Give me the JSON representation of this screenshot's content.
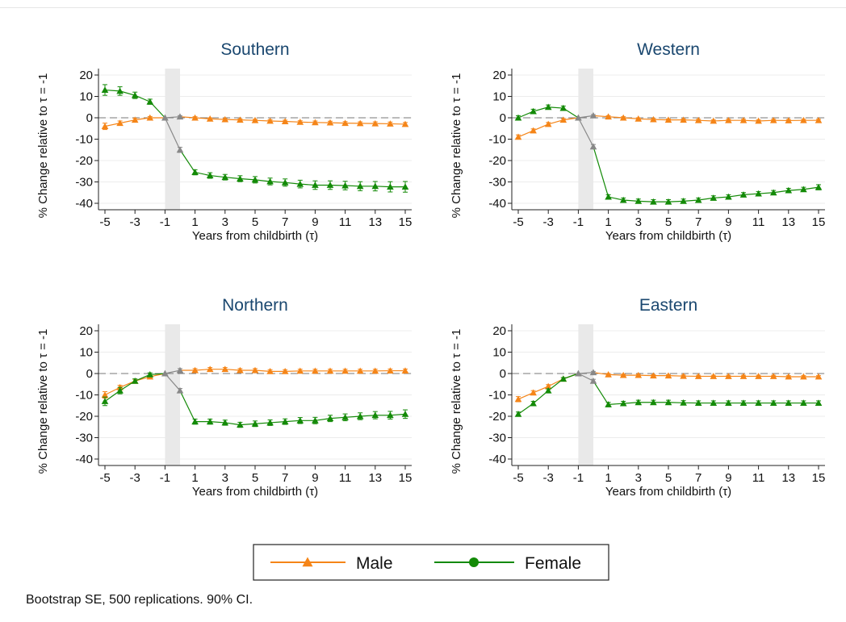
{
  "note": "Bootstrap SE, 500 replications. 90% CI.",
  "legend": [
    {
      "label": "Male",
      "color": "#f58518",
      "marker": "triangle"
    },
    {
      "label": "Female",
      "color": "#138a07",
      "marker": "circle"
    }
  ],
  "chart_data": [
    {
      "type": "line",
      "title": "Southern",
      "xlabel": "Years from childbirth (τ)",
      "ylabel": "% Change relative to τ = -1",
      "xlim": [
        -5,
        15
      ],
      "ylim": [
        -40,
        20
      ],
      "xticks": [
        -5,
        -3,
        -1,
        1,
        3,
        5,
        7,
        9,
        11,
        13,
        15
      ],
      "yticks": [
        -40,
        -30,
        -20,
        -10,
        0,
        10,
        20
      ],
      "shaded_band": [
        -1,
        0
      ],
      "reference_line": 0,
      "x": [
        -5,
        -4,
        -3,
        -2,
        -1,
        0,
        1,
        2,
        3,
        4,
        5,
        6,
        7,
        8,
        9,
        10,
        11,
        12,
        13,
        14,
        15
      ],
      "series": [
        {
          "name": "Male",
          "color": "#f58518",
          "values": [
            -4,
            -2.5,
            -1,
            0,
            0,
            0.5,
            0,
            -0.5,
            -0.8,
            -1,
            -1.2,
            -1.5,
            -1.7,
            -2,
            -2.2,
            -2.3,
            -2.5,
            -2.6,
            -2.7,
            -2.8,
            -3
          ],
          "ci": [
            1.5,
            1,
            0.8,
            0.6,
            0,
            0.5,
            0.5,
            0.5,
            0.5,
            0.5,
            0.5,
            0.6,
            0.6,
            0.6,
            0.7,
            0.7,
            0.7,
            0.7,
            0.8,
            0.8,
            0.8
          ]
        },
        {
          "name": "Female",
          "color": "#138a07",
          "values": [
            13,
            12.5,
            10.5,
            7.5,
            0,
            -15,
            -25.5,
            -27,
            -27.8,
            -28.5,
            -29,
            -29.8,
            -30.3,
            -31,
            -31.5,
            -31.5,
            -31.7,
            -32,
            -32,
            -32.3,
            -32.3
          ],
          "ci": [
            2.5,
            2,
            1.5,
            1.2,
            0,
            1.2,
            1.2,
            1.3,
            1.3,
            1.4,
            1.5,
            1.6,
            1.7,
            1.8,
            2,
            2,
            2,
            2.1,
            2.2,
            2.4,
            2.5
          ]
        }
      ]
    },
    {
      "type": "line",
      "title": "Western",
      "xlabel": "Years from childbirth (τ)",
      "ylabel": "% Change relative to τ = -1",
      "xlim": [
        -5,
        15
      ],
      "ylim": [
        -40,
        20
      ],
      "xticks": [
        -5,
        -3,
        -1,
        1,
        3,
        5,
        7,
        9,
        11,
        13,
        15
      ],
      "yticks": [
        -40,
        -30,
        -20,
        -10,
        0,
        10,
        20
      ],
      "shaded_band": [
        -1,
        0
      ],
      "reference_line": 0,
      "x": [
        -5,
        -4,
        -3,
        -2,
        -1,
        0,
        1,
        2,
        3,
        4,
        5,
        6,
        7,
        8,
        9,
        10,
        11,
        12,
        13,
        14,
        15
      ],
      "series": [
        {
          "name": "Male",
          "color": "#f58518",
          "values": [
            -9,
            -6,
            -3,
            -1,
            0,
            1,
            0.5,
            0,
            -0.5,
            -0.8,
            -1,
            -1,
            -1.2,
            -1.5,
            -1.2,
            -1.2,
            -1.5,
            -1.2,
            -1.3,
            -1.2,
            -1.2
          ],
          "ci": [
            1,
            0.8,
            0.8,
            0.6,
            0,
            0.5,
            0.5,
            0.5,
            0.5,
            0.5,
            0.5,
            0.5,
            0.5,
            0.5,
            0.5,
            0.5,
            0.5,
            0.5,
            0.5,
            0.5,
            0.5
          ]
        },
        {
          "name": "Female",
          "color": "#138a07",
          "values": [
            0,
            3,
            5,
            4.5,
            0,
            -13.5,
            -37,
            -38.5,
            -39,
            -39.3,
            -39.3,
            -39,
            -38.5,
            -37.5,
            -37,
            -36,
            -35.5,
            -35,
            -34,
            -33.5,
            -32.5
          ],
          "ci": [
            1,
            1,
            1,
            1,
            0,
            1,
            1,
            1,
            1,
            1,
            1,
            1,
            1,
            1,
            1,
            1,
            1,
            1,
            1,
            1,
            1.2
          ]
        }
      ]
    },
    {
      "type": "line",
      "title": "Northern",
      "xlabel": "Years from childbirth (τ)",
      "ylabel": "% Change relative to τ = -1",
      "xlim": [
        -5,
        15
      ],
      "ylim": [
        -40,
        20
      ],
      "xticks": [
        -5,
        -3,
        -1,
        1,
        3,
        5,
        7,
        9,
        11,
        13,
        15
      ],
      "yticks": [
        -40,
        -30,
        -20,
        -10,
        0,
        10,
        20
      ],
      "shaded_band": [
        -1,
        0
      ],
      "reference_line": 0,
      "x": [
        -5,
        -4,
        -3,
        -2,
        -1,
        0,
        1,
        2,
        3,
        4,
        5,
        6,
        7,
        8,
        9,
        10,
        11,
        12,
        13,
        14,
        15
      ],
      "series": [
        {
          "name": "Male",
          "color": "#f58518",
          "values": [
            -10,
            -6.5,
            -3.5,
            -1.5,
            0,
            1.5,
            1.5,
            2,
            2,
            1.5,
            1.5,
            1,
            1,
            1.2,
            1.2,
            1.2,
            1.2,
            1.2,
            1.2,
            1.3,
            1.3
          ],
          "ci": [
            1.5,
            1,
            0.8,
            0.6,
            0,
            0.8,
            0.8,
            0.8,
            0.8,
            0.8,
            0.8,
            0.8,
            0.8,
            0.8,
            0.8,
            0.8,
            0.8,
            0.8,
            0.8,
            0.8,
            0.8
          ]
        },
        {
          "name": "Female",
          "color": "#138a07",
          "values": [
            -13,
            -8,
            -3.5,
            -0.5,
            0,
            -8,
            -22.5,
            -22.5,
            -23,
            -24,
            -23.5,
            -23,
            -22.5,
            -22,
            -22,
            -21,
            -20.5,
            -20,
            -19.5,
            -19.5,
            -19
          ],
          "ci": [
            2,
            1.5,
            1,
            0.8,
            0,
            1,
            1.2,
            1.2,
            1.2,
            1.2,
            1.3,
            1.3,
            1.3,
            1.4,
            1.5,
            1.5,
            1.6,
            1.6,
            1.7,
            1.8,
            2
          ]
        }
      ]
    },
    {
      "type": "line",
      "title": "Eastern",
      "xlabel": "Years from childbirth (τ)",
      "ylabel": "% Change relative to τ = -1",
      "xlim": [
        -5,
        15
      ],
      "ylim": [
        -40,
        20
      ],
      "xticks": [
        -5,
        -3,
        -1,
        1,
        3,
        5,
        7,
        9,
        11,
        13,
        15
      ],
      "yticks": [
        -40,
        -30,
        -20,
        -10,
        0,
        10,
        20
      ],
      "shaded_band": [
        -1,
        0
      ],
      "reference_line": 0,
      "x": [
        -5,
        -4,
        -3,
        -2,
        -1,
        0,
        1,
        2,
        3,
        4,
        5,
        6,
        7,
        8,
        9,
        10,
        11,
        12,
        13,
        14,
        15
      ],
      "series": [
        {
          "name": "Male",
          "color": "#f58518",
          "values": [
            -12,
            -9,
            -6,
            -2.5,
            0,
            0.5,
            -0.5,
            -0.8,
            -0.8,
            -1,
            -1,
            -1.2,
            -1.3,
            -1.3,
            -1.3,
            -1.3,
            -1.3,
            -1.3,
            -1.5,
            -1.5,
            -1.5
          ],
          "ci": [
            1.2,
            1,
            0.8,
            0.6,
            0,
            0.5,
            0.5,
            0.5,
            0.5,
            0.5,
            0.5,
            0.5,
            0.5,
            0.5,
            0.5,
            0.5,
            0.5,
            0.5,
            0.5,
            0.5,
            0.5
          ]
        },
        {
          "name": "Female",
          "color": "#138a07",
          "values": [
            -19,
            -14,
            -8,
            -2.5,
            0,
            -3.5,
            -14.5,
            -14,
            -13.5,
            -13.5,
            -13.5,
            -13.7,
            -13.8,
            -13.8,
            -13.8,
            -13.8,
            -13.8,
            -13.8,
            -13.8,
            -13.8,
            -13.8
          ],
          "ci": [
            1,
            1,
            0.8,
            0.6,
            0,
            0.8,
            1,
            1,
            1,
            1,
            1,
            1,
            1,
            1,
            1,
            1,
            1,
            1,
            1,
            1,
            1
          ]
        }
      ]
    }
  ]
}
